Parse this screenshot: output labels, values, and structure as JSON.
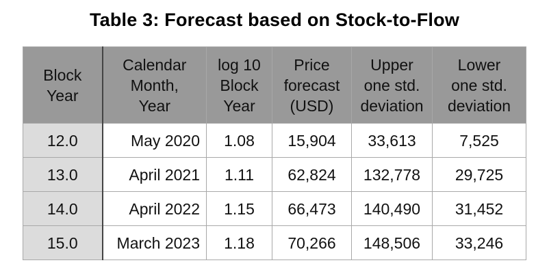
{
  "title": "Table 3: Forecast based on Stock-to-Flow",
  "columns": [
    [
      "Block",
      "Year"
    ],
    [
      "Calendar",
      "Month,",
      "Year"
    ],
    [
      "log 10",
      "Block",
      "Year"
    ],
    [
      "Price",
      "forecast",
      "(USD)"
    ],
    [
      "Upper",
      "one std.",
      "deviation"
    ],
    [
      "Lower",
      "one std.",
      "deviation"
    ]
  ],
  "rows": [
    [
      "12.0",
      "May 2020",
      "1.08",
      "15,904",
      "33,613",
      "7,525"
    ],
    [
      "13.0",
      "April 2021",
      "1.11",
      "62,824",
      "132,778",
      "29,725"
    ],
    [
      "14.0",
      "April 2022",
      "1.15",
      "66,473",
      "140,490",
      "31,452"
    ],
    [
      "15.0",
      "March 2023",
      "1.18",
      "70,266",
      "148,506",
      "33,246"
    ]
  ]
}
